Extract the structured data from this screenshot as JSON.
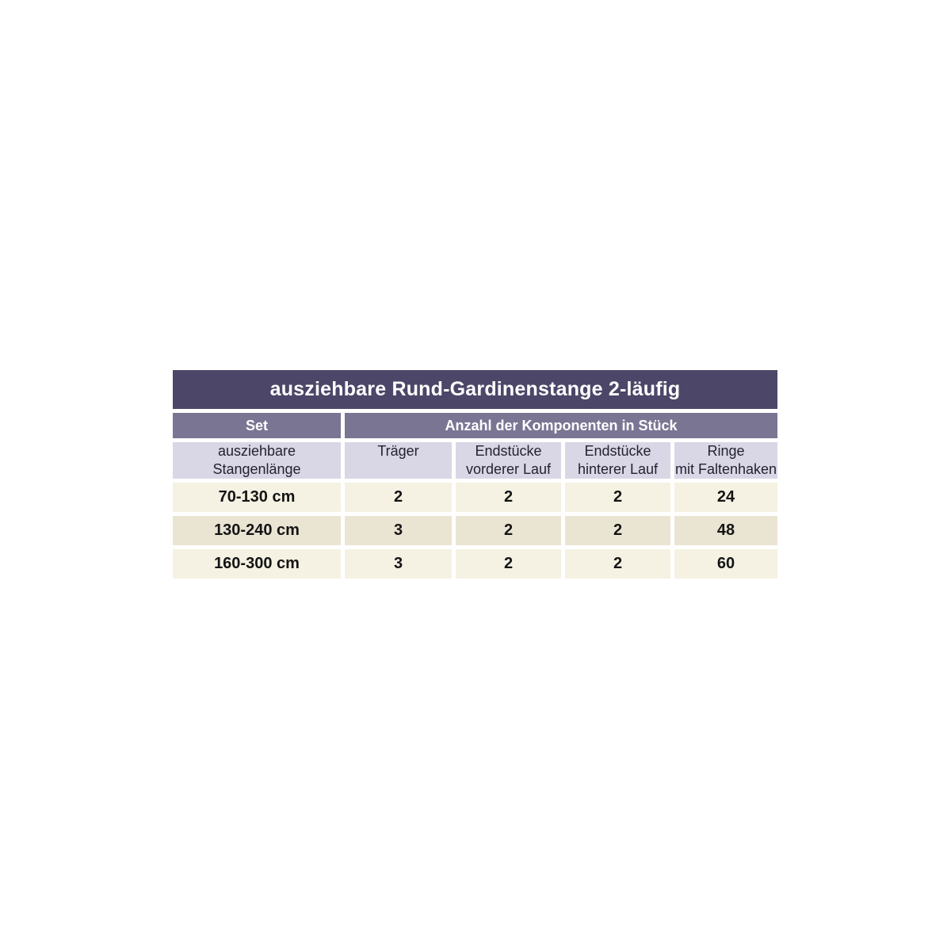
{
  "chart_data": {
    "type": "table",
    "title": "ausziehbare Rund-Gardinenstange 2-läufig",
    "group_headers": [
      "Set",
      "Anzahl der Komponenten in Stück"
    ],
    "columns": [
      "ausziehbare Stangenlänge",
      "Träger",
      "Endstücke vorderer Lauf",
      "Endstücke hinterer Lauf",
      "Ringe mit Faltenhaken"
    ],
    "rows": [
      [
        "70-130 cm",
        2,
        2,
        2,
        24
      ],
      [
        "130-240 cm",
        3,
        2,
        2,
        48
      ],
      [
        "160-300 cm",
        3,
        2,
        2,
        60
      ]
    ]
  },
  "display": {
    "header_lines": [
      {
        "line1": "ausziehbare",
        "line2": "Stangenlänge"
      },
      {
        "line1": "Träger",
        "line2": ""
      },
      {
        "line1": "Endstücke",
        "line2": "vorderer Lauf"
      },
      {
        "line1": "Endstücke",
        "line2": "hinterer Lauf"
      },
      {
        "line1": "Ringe",
        "line2": "mit Faltenhaken"
      }
    ]
  },
  "colors": {
    "title_bg": "#4c4668",
    "group_bg": "#7b7594",
    "header_bg": "#d9d6e5",
    "header_text": "#232330",
    "row_light_bg": "#f5f2e3",
    "row_dark_bg": "#eae5d3",
    "data_text": "#141414",
    "white_text": "#ffffff",
    "page_bg": "#ffffff"
  }
}
